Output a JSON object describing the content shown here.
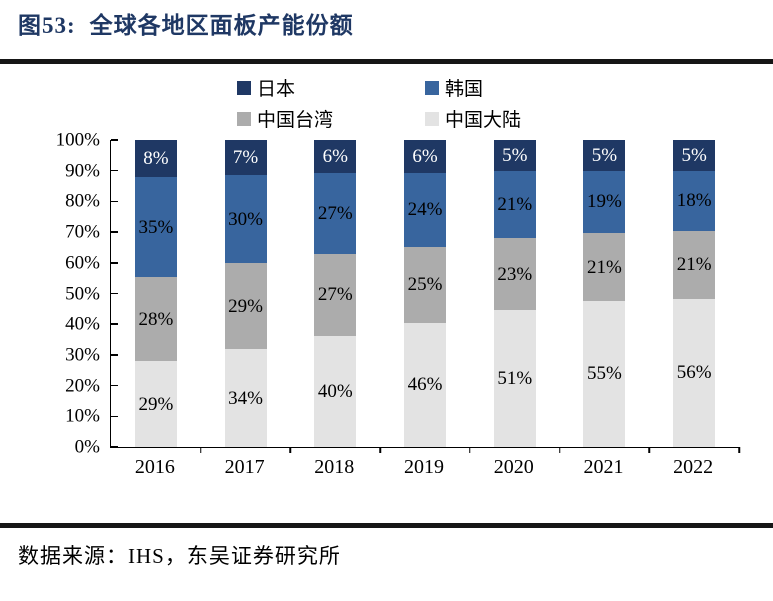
{
  "figure": {
    "label": "图53:",
    "title": "全球各地区面板产能份额"
  },
  "source": {
    "text": "数据来源：IHS，东吴证券研究所"
  },
  "chart_data": {
    "type": "bar",
    "stacked": true,
    "percent_stacked": true,
    "unit": "%",
    "title": "全球各地区面板产能份额",
    "categories": [
      "2016",
      "2017",
      "2018",
      "2019",
      "2020",
      "2021",
      "2022"
    ],
    "series": [
      {
        "name": "日本",
        "color": "#1F3864",
        "label_color": "#FFFFFF",
        "values": [
          8,
          7,
          6,
          6,
          5,
          5,
          5
        ]
      },
      {
        "name": "韩国",
        "color": "#38659E",
        "label_color": "#000000",
        "values": [
          35,
          30,
          27,
          24,
          21,
          19,
          18
        ]
      },
      {
        "name": "中国台湾",
        "color": "#ACACAC",
        "label_color": "#000000",
        "values": [
          28,
          29,
          27,
          25,
          23,
          21,
          21
        ]
      },
      {
        "name": "中国大陆",
        "color": "#E3E3E3",
        "label_color": "#000000",
        "values": [
          29,
          34,
          40,
          46,
          51,
          55,
          56
        ]
      }
    ],
    "stacking_order_bottom_to_top": [
      "中国大陆",
      "中国台湾",
      "韩国",
      "日本"
    ],
    "y_axis": {
      "min": 0,
      "max": 100,
      "ticks": [
        "100%",
        "90%",
        "80%",
        "70%",
        "60%",
        "50%",
        "40%",
        "30%",
        "20%",
        "10%",
        "0%"
      ]
    },
    "legend_position": "top",
    "grid": false,
    "accent_colors": {
      "title": "#1F3864",
      "rule": "#161616"
    }
  }
}
